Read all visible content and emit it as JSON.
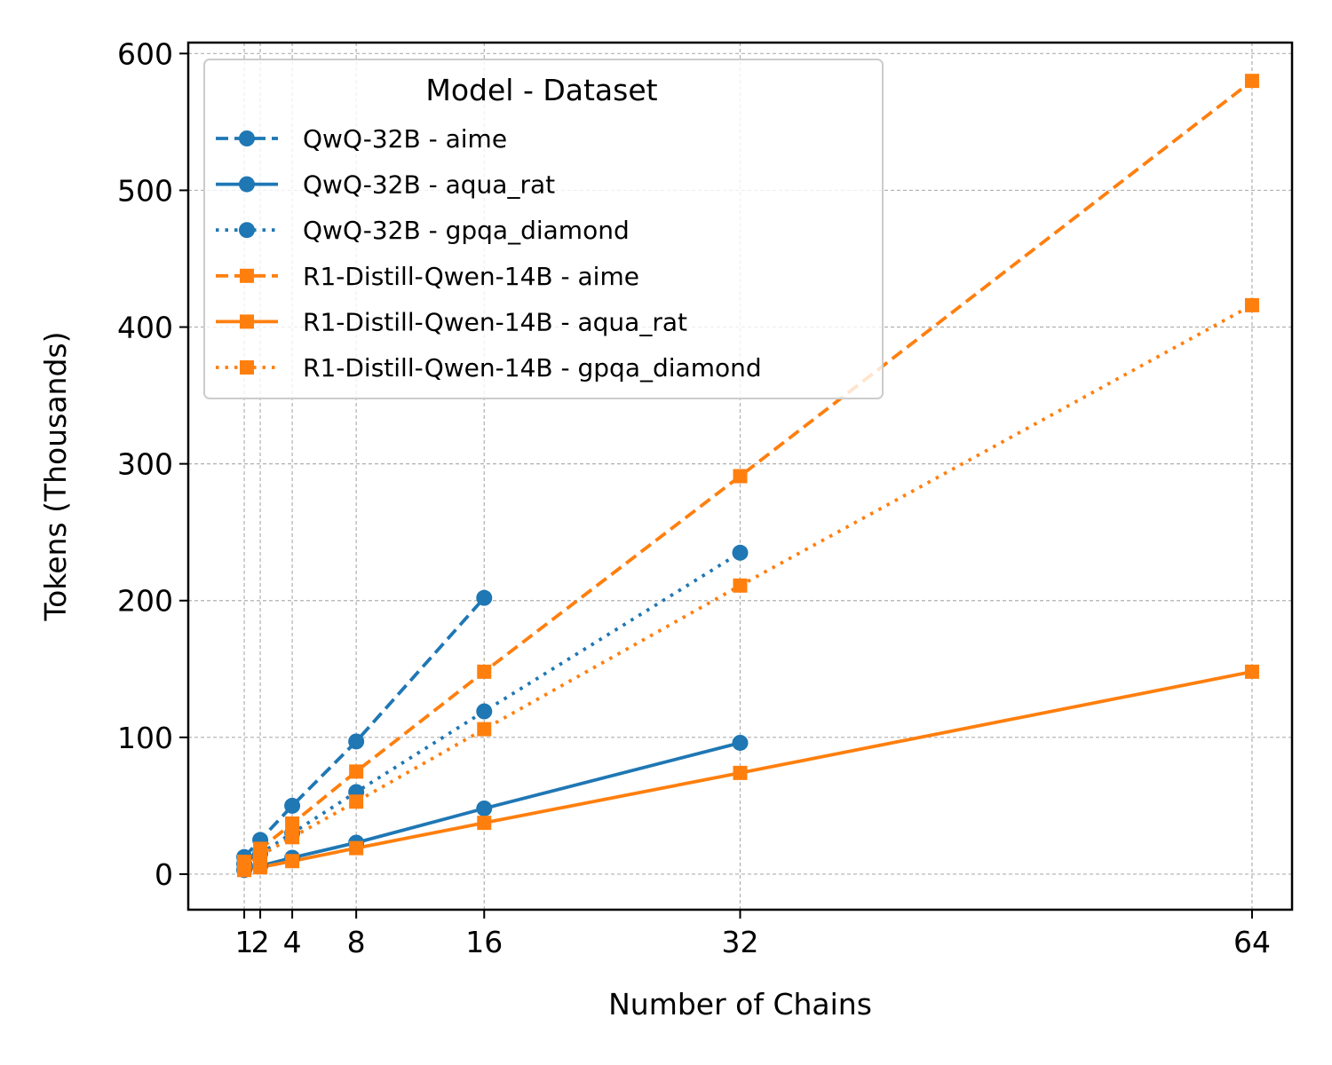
{
  "chart_data": {
    "type": "line",
    "title": "",
    "xlabel": "Number of Chains",
    "ylabel": "Tokens (Thousands)",
    "xlim": [
      -2.5,
      66.5
    ],
    "ylim": [
      -26,
      608
    ],
    "x_ticks": [
      1,
      2,
      4,
      8,
      16,
      32,
      64
    ],
    "y_ticks": [
      0,
      100,
      200,
      300,
      400,
      500,
      600
    ],
    "grid": true,
    "legend": {
      "title": "Model - Dataset",
      "position": "upper-left"
    },
    "series": [
      {
        "name": "QwQ-32B - aime",
        "color": "#1f77b4",
        "marker": "circle",
        "linestyle": "dashed",
        "x": [
          1,
          2,
          4,
          8,
          16
        ],
        "y": [
          12.5,
          25,
          50,
          97,
          202
        ]
      },
      {
        "name": "QwQ-32B - aqua_rat",
        "color": "#1f77b4",
        "marker": "circle",
        "linestyle": "solid",
        "x": [
          1,
          2,
          4,
          8,
          16,
          32
        ],
        "y": [
          3,
          6,
          12,
          23,
          48,
          96
        ]
      },
      {
        "name": "QwQ-32B - gpqa_diamond",
        "color": "#1f77b4",
        "marker": "circle",
        "linestyle": "dotted",
        "x": [
          1,
          2,
          4,
          8,
          16,
          32
        ],
        "y": [
          7.5,
          15,
          30,
          60,
          119,
          235
        ]
      },
      {
        "name": "R1-Distill-Qwen-14B - aime",
        "color": "#ff7f0e",
        "marker": "square",
        "linestyle": "dashed",
        "x": [
          1,
          2,
          4,
          8,
          16,
          32,
          64
        ],
        "y": [
          9,
          18.5,
          37,
          75,
          148,
          291,
          580
        ]
      },
      {
        "name": "R1-Distill-Qwen-14B - aqua_rat",
        "color": "#ff7f0e",
        "marker": "square",
        "linestyle": "solid",
        "x": [
          1,
          2,
          4,
          8,
          16,
          32,
          64
        ],
        "y": [
          3,
          5,
          9.5,
          19,
          37.5,
          74,
          148
        ]
      },
      {
        "name": "R1-Distill-Qwen-14B - gpqa_diamond",
        "color": "#ff7f0e",
        "marker": "square",
        "linestyle": "dotted",
        "x": [
          1,
          2,
          4,
          8,
          16,
          32,
          64
        ],
        "y": [
          6.5,
          13.5,
          27,
          53,
          106,
          211,
          416
        ]
      }
    ]
  }
}
